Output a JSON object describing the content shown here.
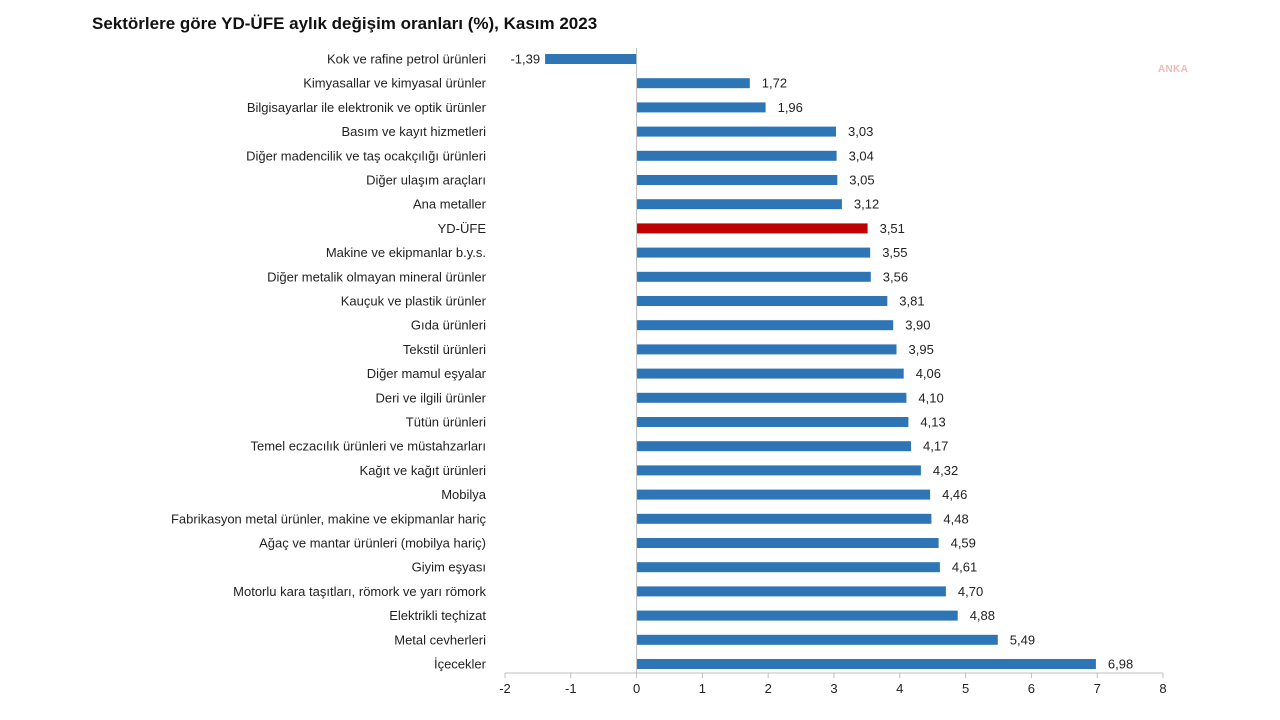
{
  "title": "Sektörlere göre YD-ÜFE aylık değişim oranları (%), Kasım 2023",
  "watermark": "ANKA",
  "colors": {
    "bar": "#2e75b6",
    "highlight": "#c00000",
    "axis": "#bfbfbf",
    "text": "#222222"
  },
  "chart_data": {
    "type": "bar",
    "orientation": "horizontal",
    "title": "Sektörlere göre YD-ÜFE aylık değişim oranları (%), Kasım 2023",
    "xlabel": "",
    "ylabel": "",
    "xlim": [
      -2,
      8
    ],
    "xticks": [
      "-2",
      "-1",
      "0",
      "1",
      "2",
      "3",
      "4",
      "5",
      "6",
      "7",
      "8"
    ],
    "grid": false,
    "legend": "none",
    "highlighted_category": "YD-ÜFE",
    "categories": [
      "Kok ve rafine petrol ürünleri",
      "Kimyasallar ve kimyasal ürünler",
      "Bilgisayarlar ile elektronik ve optik ürünler",
      "Basım ve kayıt hizmetleri",
      "Diğer madencilik ve taş ocakçılığı ürünleri",
      "Diğer ulaşım araçları",
      "Ana metaller",
      "YD-ÜFE",
      "Makine ve ekipmanlar b.y.s.",
      "Diğer metalik olmayan mineral ürünler",
      "Kauçuk ve plastik ürünler",
      "Gıda ürünleri",
      "Tekstil ürünleri",
      "Diğer mamul eşyalar",
      "Deri ve ilgili ürünler",
      "Tütün ürünleri",
      "Temel eczacılık ürünleri ve müstahzarları",
      "Kağıt ve kağıt ürünleri",
      "Mobilya",
      "Fabrikasyon metal ürünler, makine ve ekipmanlar hariç",
      "Ağaç ve mantar ürünleri (mobilya hariç)",
      "Giyim eşyası",
      "Motorlu kara taşıtları, römork ve yarı römork",
      "Elektrikli teçhizat",
      "Metal cevherleri",
      "İçecekler"
    ],
    "values": [
      -1.39,
      1.72,
      1.96,
      3.03,
      3.04,
      3.05,
      3.12,
      3.51,
      3.55,
      3.56,
      3.81,
      3.9,
      3.95,
      4.06,
      4.1,
      4.13,
      4.17,
      4.32,
      4.46,
      4.48,
      4.59,
      4.61,
      4.7,
      4.88,
      5.49,
      6.98
    ],
    "value_labels": [
      "-1,39",
      "1,72",
      "1,96",
      "3,03",
      "3,04",
      "3,05",
      "3,12",
      "3,51",
      "3,55",
      "3,56",
      "3,81",
      "3,90",
      "3,95",
      "4,06",
      "4,10",
      "4,13",
      "4,17",
      "4,32",
      "4,46",
      "4,48",
      "4,59",
      "4,61",
      "4,70",
      "4,88",
      "5,49",
      "6,98"
    ]
  }
}
